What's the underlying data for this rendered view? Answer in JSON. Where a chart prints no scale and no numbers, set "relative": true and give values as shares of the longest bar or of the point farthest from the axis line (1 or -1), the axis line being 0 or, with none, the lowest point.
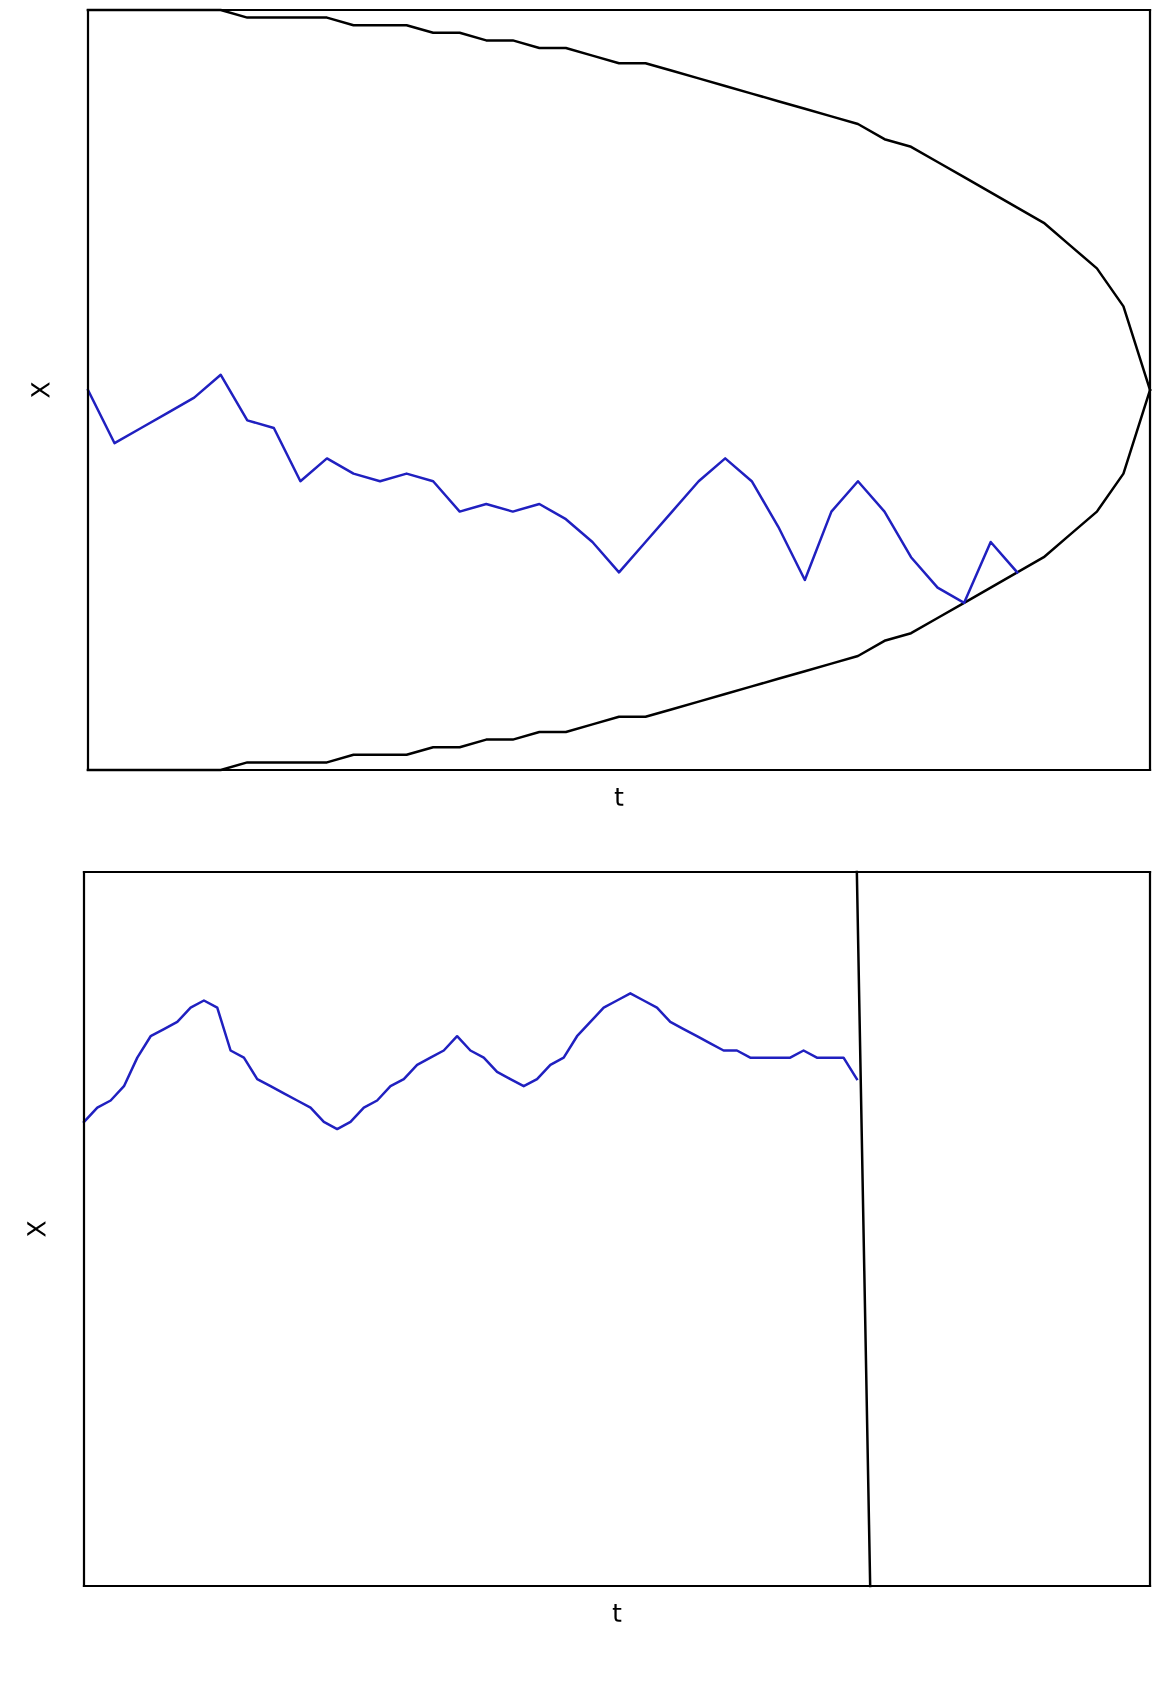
{
  "chart_data": [
    {
      "type": "line",
      "relative": true,
      "xlabel": "t",
      "ylabel": "X",
      "tick_labels": false,
      "grid": false,
      "legend": false,
      "categories": [
        null,
        null,
        null,
        null,
        null,
        null,
        null,
        null,
        null,
        null,
        null,
        null,
        null,
        null,
        null,
        null,
        null,
        null,
        null,
        null,
        null,
        null,
        null,
        null,
        null,
        null,
        null,
        null,
        null,
        null,
        null,
        null,
        null,
        null,
        null,
        null,
        null,
        null,
        null,
        null,
        null
      ],
      "series": [
        {
          "color": "#000000",
          "values": [
            1,
            1,
            1,
            1,
            1,
            1,
            0.99,
            0.99,
            0.99,
            0.99,
            0.98,
            0.98,
            0.98,
            0.97,
            0.97,
            0.96,
            0.96,
            0.95,
            0.95,
            0.94,
            0.93,
            0.93,
            0.92,
            0.91,
            0.9,
            0.89,
            0.88,
            0.87,
            0.86,
            0.85,
            0.83,
            0.82,
            0.8,
            0.78,
            0.76,
            0.74,
            0.72,
            0.69,
            0.66,
            0.61,
            0.5
          ]
        },
        {
          "color": "#000000",
          "values": [
            0,
            0,
            0,
            0,
            0,
            0,
            0.01,
            0.01,
            0.01,
            0.01,
            0.02,
            0.02,
            0.02,
            0.03,
            0.03,
            0.04,
            0.04,
            0.05,
            0.05,
            0.06,
            0.07,
            0.07,
            0.08,
            0.09,
            0.1,
            0.11,
            0.12,
            0.13,
            0.14,
            0.15,
            0.17,
            0.18,
            0.2,
            0.22,
            0.24,
            0.26,
            0.28,
            0.31,
            0.34,
            0.39,
            0.5
          ]
        },
        {
          "color": "#2020c0",
          "values": [
            0.5,
            0.43,
            0.45,
            0.47,
            0.49,
            0.52,
            0.46,
            0.45,
            0.38,
            0.41,
            0.39,
            0.38,
            0.39,
            0.38,
            0.34,
            0.35,
            0.34,
            0.35,
            0.33,
            0.3,
            0.26,
            0.3,
            0.34,
            0.38,
            0.41,
            0.38,
            0.32,
            0.25,
            0.34,
            0.38,
            0.34,
            0.28,
            0.24,
            0.22,
            0.3,
            0.26,
            null,
            null,
            null,
            null,
            null
          ]
        }
      ]
    },
    {
      "type": "line",
      "relative": true,
      "xlabel": "t",
      "ylabel": "X",
      "tick_labels": false,
      "grid": false,
      "legend": false,
      "categories": [
        null,
        null,
        null,
        null,
        null,
        null,
        null,
        null,
        null,
        null,
        null,
        null,
        null,
        null,
        null,
        null,
        null,
        null,
        null,
        null,
        null,
        null,
        null,
        null,
        null,
        null,
        null,
        null,
        null,
        null,
        null,
        null,
        null,
        null,
        null,
        null,
        null,
        null,
        null,
        null,
        null,
        null,
        null,
        null,
        null,
        null,
        null,
        null,
        null,
        null,
        null,
        null,
        null,
        null,
        null,
        null,
        null,
        null,
        null,
        null,
        null,
        null,
        null,
        null,
        null,
        null,
        null,
        null,
        null,
        null,
        null,
        null,
        null,
        null,
        null,
        null,
        null,
        null,
        null,
        null,
        null
      ],
      "series": [
        {
          "color": "#2020c0",
          "values": [
            0.65,
            0.67,
            0.68,
            0.7,
            0.74,
            0.77,
            0.78,
            0.79,
            0.81,
            0.82,
            0.81,
            0.75,
            0.74,
            0.71,
            0.7,
            0.69,
            0.68,
            0.67,
            0.65,
            0.64,
            0.65,
            0.67,
            0.68,
            0.7,
            0.71,
            0.73,
            0.74,
            0.75,
            0.77,
            0.75,
            0.74,
            0.72,
            0.71,
            0.7,
            0.71,
            0.73,
            0.74,
            0.77,
            0.79,
            0.81,
            0.82,
            0.83,
            0.82,
            0.81,
            0.79,
            0.78,
            0.77,
            0.76,
            0.75,
            0.75,
            0.74,
            0.74,
            0.74,
            0.74,
            0.75,
            0.74,
            0.74,
            0.74,
            0.71,
            null,
            null,
            null,
            null,
            null,
            null,
            null,
            null,
            null,
            null,
            null,
            null,
            null,
            null,
            null,
            null,
            null,
            null,
            null,
            null,
            null,
            null
          ]
        },
        {
          "color": "#000000",
          "values": [
            null,
            null,
            null,
            null,
            null,
            null,
            null,
            null,
            null,
            null,
            null,
            null,
            null,
            null,
            null,
            null,
            null,
            null,
            null,
            null,
            null,
            null,
            null,
            null,
            null,
            null,
            null,
            null,
            null,
            null,
            null,
            null,
            null,
            null,
            null,
            null,
            null,
            null,
            null,
            null,
            null,
            null,
            null,
            null,
            null,
            null,
            null,
            null,
            null,
            null,
            null,
            null,
            null,
            null,
            null,
            null,
            null,
            null,
            1,
            0,
            null,
            null,
            null,
            null,
            null,
            null,
            null,
            null,
            null,
            null,
            null,
            null,
            null,
            null,
            null,
            null,
            null,
            null,
            null,
            null,
            null
          ]
        }
      ]
    }
  ]
}
